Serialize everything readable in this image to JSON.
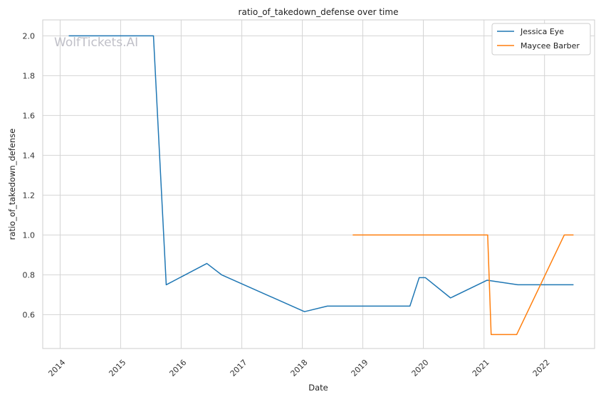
{
  "chart_data": {
    "type": "line",
    "title": "ratio_of_takedown_defense over time",
    "xlabel": "Date",
    "ylabel": "ratio_of_takedown_defense",
    "watermark": "WolfTickets.AI",
    "xlim": [
      "2013-09-18",
      "2022-10-30"
    ],
    "ylim": [
      0.43,
      2.08
    ],
    "x_ticks": [
      "2014-01-01",
      "2015-01-01",
      "2016-01-01",
      "2017-01-01",
      "2018-01-01",
      "2019-01-01",
      "2020-01-01",
      "2021-01-01",
      "2022-01-01"
    ],
    "x_tick_labels": [
      "2014",
      "2015",
      "2016",
      "2017",
      "2018",
      "2019",
      "2020",
      "2021",
      "2022"
    ],
    "y_ticks": [
      0.6,
      0.8,
      1.0,
      1.2,
      1.4,
      1.6,
      1.8,
      2.0
    ],
    "y_tick_labels": [
      "0.6",
      "0.8",
      "1.0",
      "1.2",
      "1.4",
      "1.6",
      "1.8",
      "2.0"
    ],
    "grid": true,
    "legend_position": "top-right",
    "series": [
      {
        "name": "Jessica Eye",
        "color": "#1f77b4",
        "points": [
          [
            "2014-02-22",
            2.0
          ],
          [
            "2015-07-18",
            2.0
          ],
          [
            "2015-10-03",
            0.75
          ],
          [
            "2016-06-04",
            0.857
          ],
          [
            "2016-09-01",
            0.8
          ],
          [
            "2018-01-14",
            0.615
          ],
          [
            "2018-06-01",
            0.643
          ],
          [
            "2019-10-12",
            0.643
          ],
          [
            "2019-12-07",
            0.786
          ],
          [
            "2020-01-13",
            0.786
          ],
          [
            "2020-06-13",
            0.684
          ],
          [
            "2021-01-20",
            0.773
          ],
          [
            "2021-07-24",
            0.75
          ],
          [
            "2022-06-25",
            0.75
          ]
        ]
      },
      {
        "name": "Maycee Barber",
        "color": "#ff7f0e",
        "points": [
          [
            "2018-11-01",
            1.0
          ],
          [
            "2021-01-23",
            1.0
          ],
          [
            "2021-02-13",
            0.5
          ],
          [
            "2021-07-17",
            0.5
          ],
          [
            "2022-04-30",
            1.0
          ],
          [
            "2022-06-25",
            1.0
          ]
        ]
      }
    ]
  }
}
